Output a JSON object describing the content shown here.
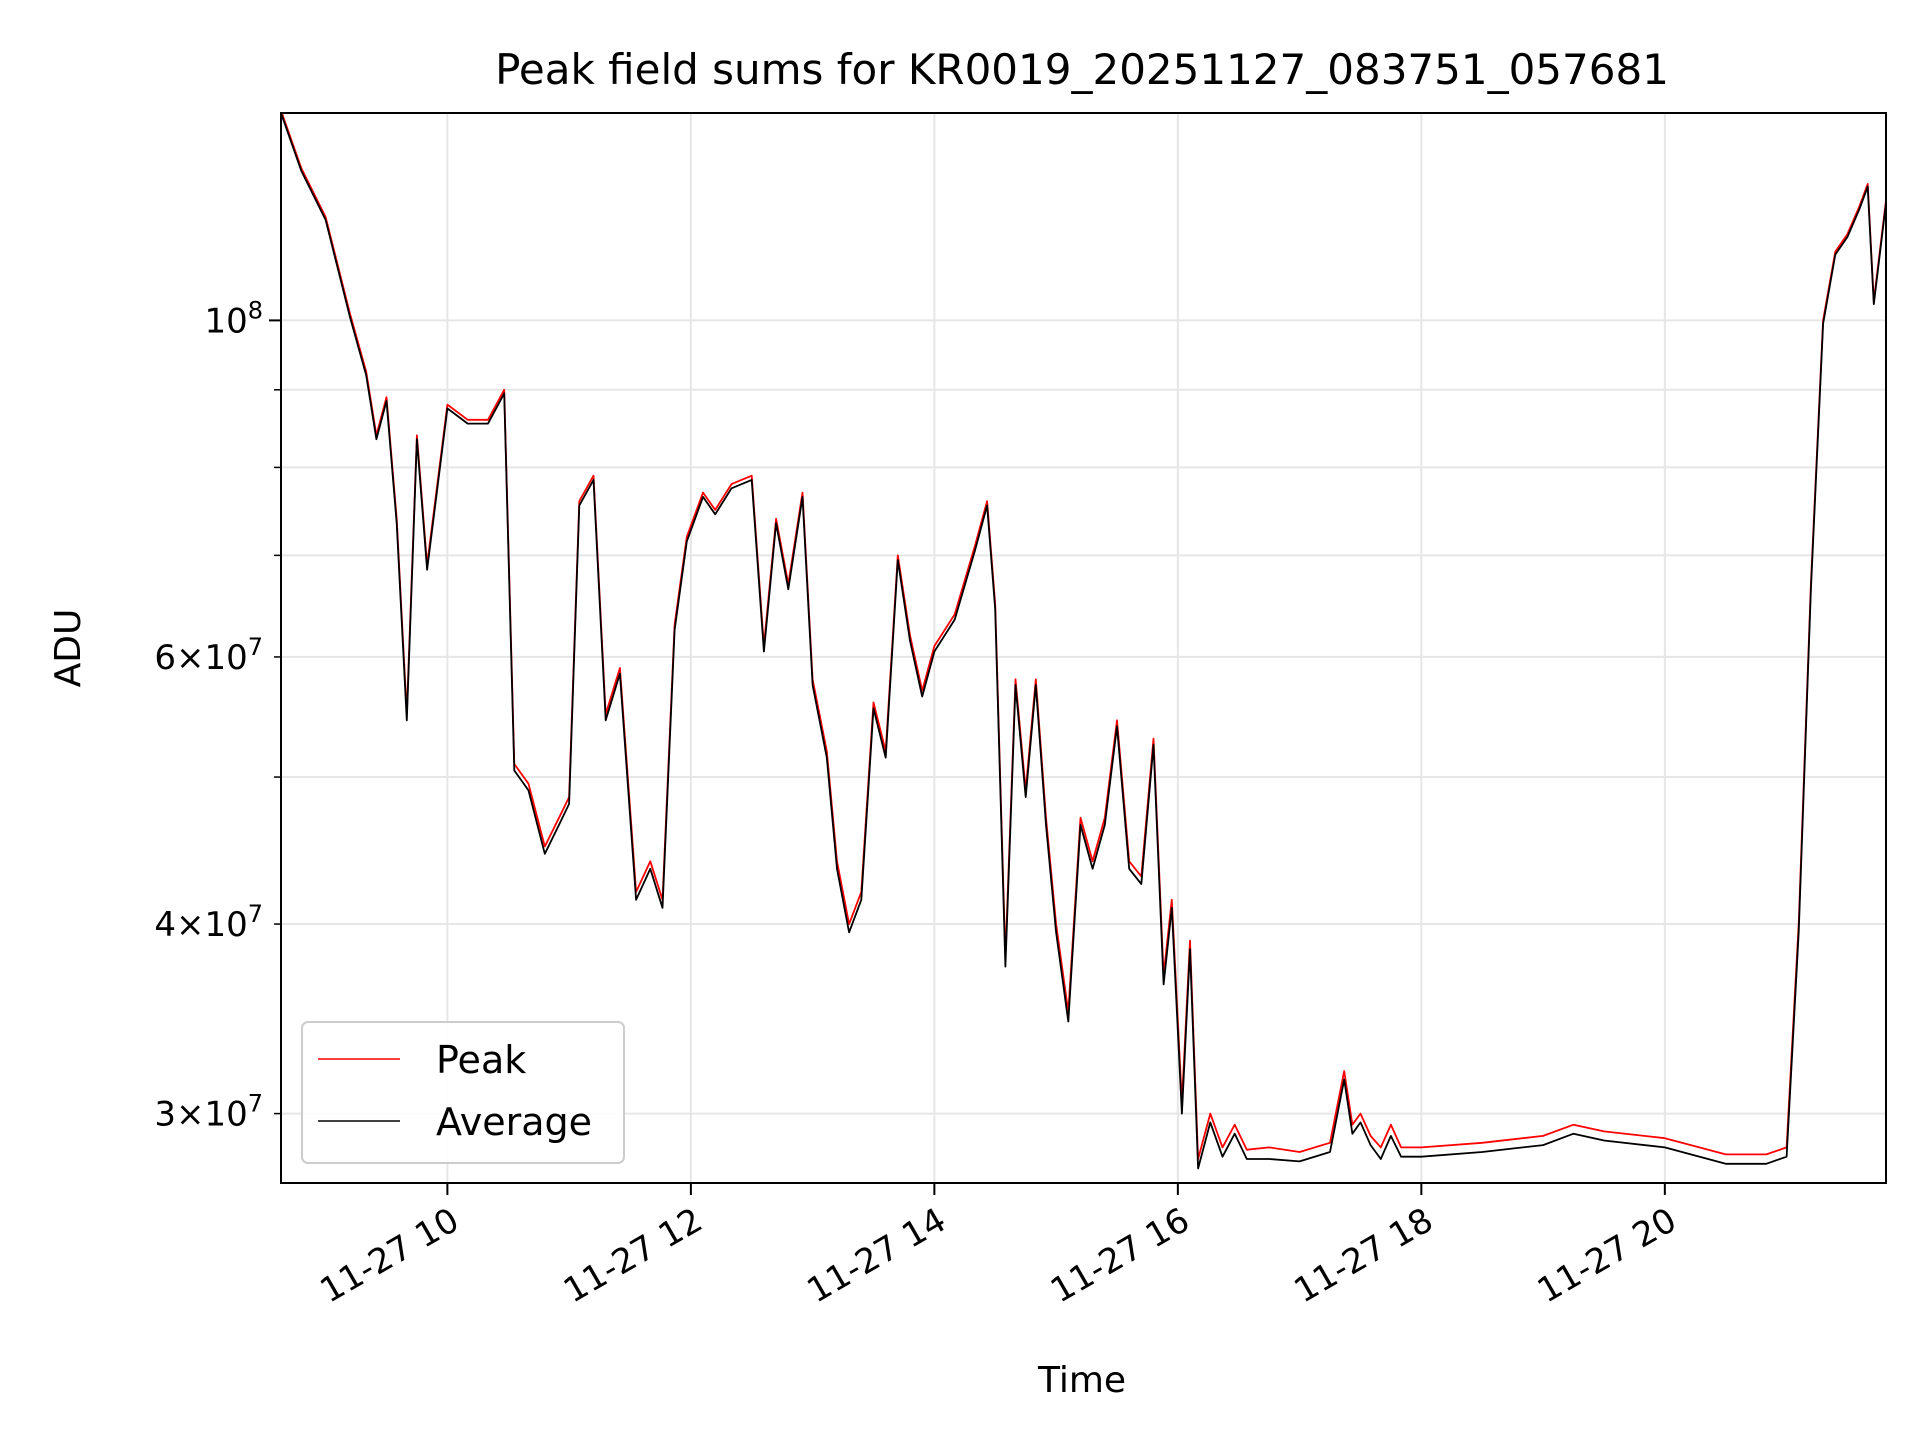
{
  "chart_data": {
    "type": "line",
    "title": "Peak field sums for KR0019_20251127_083751_057681",
    "xlabel": "Time",
    "ylabel": "ADU",
    "y_scale": "log",
    "grid": true,
    "legend_placement": "lower-left",
    "xlim": [
      "2025-11-27 08:38",
      "2025-11-27 21:49"
    ],
    "ylim": [
      27000000,
      137000000
    ],
    "x_ticks": [
      "11-27 10",
      "11-27 12",
      "11-27 14",
      "11-27 16",
      "11-27 18",
      "11-27 20"
    ],
    "x_tick_values": [
      "2025-11-27 10:00",
      "2025-11-27 12:00",
      "2025-11-27 14:00",
      "2025-11-27 16:00",
      "2025-11-27 18:00",
      "2025-11-27 20:00"
    ],
    "y_ticks": [
      {
        "value": 30000000,
        "mantissa": "3",
        "exp": "7",
        "major": false
      },
      {
        "value": 40000000,
        "mantissa": "4",
        "exp": "7",
        "major": false
      },
      {
        "value": 60000000,
        "mantissa": "6",
        "exp": "7",
        "major": false
      },
      {
        "value": 100000000,
        "mantissa": "",
        "exp": "8",
        "major": true
      }
    ],
    "y_minor_unlabeled": [
      50000000,
      70000000,
      80000000,
      90000000
    ],
    "series": [
      {
        "name": "Peak",
        "color": "#ff0000",
        "x": [
          "2025-11-27 08:38",
          "2025-11-27 08:48",
          "2025-11-27 09:00",
          "2025-11-27 09:12",
          "2025-11-27 09:20",
          "2025-11-27 09:25",
          "2025-11-27 09:30",
          "2025-11-27 09:35",
          "2025-11-27 09:40",
          "2025-11-27 09:45",
          "2025-11-27 09:50",
          "2025-11-27 10:00",
          "2025-11-27 10:10",
          "2025-11-27 10:20",
          "2025-11-27 10:28",
          "2025-11-27 10:33",
          "2025-11-27 10:40",
          "2025-11-27 10:48",
          "2025-11-27 10:55",
          "2025-11-27 11:00",
          "2025-11-27 11:05",
          "2025-11-27 11:12",
          "2025-11-27 11:18",
          "2025-11-27 11:25",
          "2025-11-27 11:33",
          "2025-11-27 11:40",
          "2025-11-27 11:46",
          "2025-11-27 11:52",
          "2025-11-27 11:58",
          "2025-11-27 12:06",
          "2025-11-27 12:12",
          "2025-11-27 12:20",
          "2025-11-27 12:30",
          "2025-11-27 12:36",
          "2025-11-27 12:42",
          "2025-11-27 12:48",
          "2025-11-27 12:55",
          "2025-11-27 13:00",
          "2025-11-27 13:07",
          "2025-11-27 13:12",
          "2025-11-27 13:18",
          "2025-11-27 13:24",
          "2025-11-27 13:30",
          "2025-11-27 13:36",
          "2025-11-27 13:42",
          "2025-11-27 13:48",
          "2025-11-27 13:54",
          "2025-11-27 14:00",
          "2025-11-27 14:10",
          "2025-11-27 14:20",
          "2025-11-27 14:26",
          "2025-11-27 14:30",
          "2025-11-27 14:35",
          "2025-11-27 14:40",
          "2025-11-27 14:45",
          "2025-11-27 14:50",
          "2025-11-27 14:55",
          "2025-11-27 15:00",
          "2025-11-27 15:06",
          "2025-11-27 15:12",
          "2025-11-27 15:18",
          "2025-11-27 15:24",
          "2025-11-27 15:30",
          "2025-11-27 15:36",
          "2025-11-27 15:42",
          "2025-11-27 15:48",
          "2025-11-27 15:53",
          "2025-11-27 15:57",
          "2025-11-27 16:02",
          "2025-11-27 16:06",
          "2025-11-27 16:10",
          "2025-11-27 16:16",
          "2025-11-27 16:22",
          "2025-11-27 16:28",
          "2025-11-27 16:34",
          "2025-11-27 16:45",
          "2025-11-27 17:00",
          "2025-11-27 17:15",
          "2025-11-27 17:22",
          "2025-11-27 17:26",
          "2025-11-27 17:30",
          "2025-11-27 17:35",
          "2025-11-27 17:40",
          "2025-11-27 17:45",
          "2025-11-27 17:50",
          "2025-11-27 18:00",
          "2025-11-27 18:30",
          "2025-11-27 19:00",
          "2025-11-27 19:15",
          "2025-11-27 19:30",
          "2025-11-27 20:00",
          "2025-11-27 20:30",
          "2025-11-27 20:50",
          "2025-11-27 21:00",
          "2025-11-27 21:06",
          "2025-11-27 21:12",
          "2025-11-27 21:18",
          "2025-11-27 21:24",
          "2025-11-27 21:30",
          "2025-11-27 21:36",
          "2025-11-27 21:40",
          "2025-11-27 21:43",
          "2025-11-27 21:49"
        ],
        "y": [
          137500000,
          126000000,
          117000000,
          101000000,
          92500000,
          84000000,
          89000000,
          74000000,
          55000000,
          84000000,
          69000000,
          88000000,
          86000000,
          86000000,
          90000000,
          51000000,
          49500000,
          45000000,
          47000000,
          48500000,
          76000000,
          79000000,
          55000000,
          59000000,
          42000000,
          44000000,
          41500000,
          63000000,
          72000000,
          77000000,
          75000000,
          78000000,
          79000000,
          61000000,
          74000000,
          67000000,
          77000000,
          58000000,
          52000000,
          44000000,
          40000000,
          42000000,
          56000000,
          52000000,
          70000000,
          62000000,
          57000000,
          61000000,
          64000000,
          71000000,
          76000000,
          65000000,
          38000000,
          58000000,
          49000000,
          58000000,
          47000000,
          40000000,
          35000000,
          47000000,
          44000000,
          47000000,
          54500000,
          44000000,
          43000000,
          53000000,
          37000000,
          41500000,
          30500000,
          39000000,
          28000000,
          30000000,
          28500000,
          29500000,
          28400000,
          28500000,
          28300000,
          28700000,
          32000000,
          29500000,
          30000000,
          29000000,
          28500000,
          29500000,
          28500000,
          28500000,
          28700000,
          29000000,
          29500000,
          29200000,
          28900000,
          28200000,
          28200000,
          28500000,
          40000000,
          67000000,
          100000000,
          111000000,
          114000000,
          119000000,
          123000000,
          103000000,
          120000000
        ]
      },
      {
        "name": "Average",
        "color": "#000000",
        "x": [
          "2025-11-27 08:38",
          "2025-11-27 08:48",
          "2025-11-27 09:00",
          "2025-11-27 09:12",
          "2025-11-27 09:20",
          "2025-11-27 09:25",
          "2025-11-27 09:30",
          "2025-11-27 09:35",
          "2025-11-27 09:40",
          "2025-11-27 09:45",
          "2025-11-27 09:50",
          "2025-11-27 10:00",
          "2025-11-27 10:10",
          "2025-11-27 10:20",
          "2025-11-27 10:28",
          "2025-11-27 10:33",
          "2025-11-27 10:40",
          "2025-11-27 10:48",
          "2025-11-27 10:55",
          "2025-11-27 11:00",
          "2025-11-27 11:05",
          "2025-11-27 11:12",
          "2025-11-27 11:18",
          "2025-11-27 11:25",
          "2025-11-27 11:33",
          "2025-11-27 11:40",
          "2025-11-27 11:46",
          "2025-11-27 11:52",
          "2025-11-27 11:58",
          "2025-11-27 12:06",
          "2025-11-27 12:12",
          "2025-11-27 12:20",
          "2025-11-27 12:30",
          "2025-11-27 12:36",
          "2025-11-27 12:42",
          "2025-11-27 12:48",
          "2025-11-27 12:55",
          "2025-11-27 13:00",
          "2025-11-27 13:07",
          "2025-11-27 13:12",
          "2025-11-27 13:18",
          "2025-11-27 13:24",
          "2025-11-27 13:30",
          "2025-11-27 13:36",
          "2025-11-27 13:42",
          "2025-11-27 13:48",
          "2025-11-27 13:54",
          "2025-11-27 14:00",
          "2025-11-27 14:10",
          "2025-11-27 14:20",
          "2025-11-27 14:26",
          "2025-11-27 14:30",
          "2025-11-27 14:35",
          "2025-11-27 14:40",
          "2025-11-27 14:45",
          "2025-11-27 14:50",
          "2025-11-27 14:55",
          "2025-11-27 15:00",
          "2025-11-27 15:06",
          "2025-11-27 15:12",
          "2025-11-27 15:18",
          "2025-11-27 15:24",
          "2025-11-27 15:30",
          "2025-11-27 15:36",
          "2025-11-27 15:42",
          "2025-11-27 15:48",
          "2025-11-27 15:53",
          "2025-11-27 15:57",
          "2025-11-27 16:02",
          "2025-11-27 16:06",
          "2025-11-27 16:10",
          "2025-11-27 16:16",
          "2025-11-27 16:22",
          "2025-11-27 16:28",
          "2025-11-27 16:34",
          "2025-11-27 16:45",
          "2025-11-27 17:00",
          "2025-11-27 17:15",
          "2025-11-27 17:22",
          "2025-11-27 17:26",
          "2025-11-27 17:30",
          "2025-11-27 17:35",
          "2025-11-27 17:40",
          "2025-11-27 17:45",
          "2025-11-27 17:50",
          "2025-11-27 18:00",
          "2025-11-27 18:30",
          "2025-11-27 19:00",
          "2025-11-27 19:15",
          "2025-11-27 19:30",
          "2025-11-27 20:00",
          "2025-11-27 20:30",
          "2025-11-27 20:50",
          "2025-11-27 21:00",
          "2025-11-27 21:06",
          "2025-11-27 21:12",
          "2025-11-27 21:18",
          "2025-11-27 21:24",
          "2025-11-27 21:30",
          "2025-11-27 21:36",
          "2025-11-27 21:40",
          "2025-11-27 21:43",
          "2025-11-27 21:49"
        ],
        "y": [
          137000000,
          125500000,
          116500000,
          100500000,
          92000000,
          83500000,
          88500000,
          73500000,
          54500000,
          83500000,
          68500000,
          87500000,
          85500000,
          85500000,
          89500000,
          50500000,
          49000000,
          44500000,
          46500000,
          48000000,
          75500000,
          78500000,
          54500000,
          58500000,
          41500000,
          43500000,
          41000000,
          62500000,
          71500000,
          76500000,
          74500000,
          77500000,
          78500000,
          60500000,
          73500000,
          66500000,
          76500000,
          57500000,
          51500000,
          43500000,
          39500000,
          41500000,
          55500000,
          51500000,
          69500000,
          61500000,
          56500000,
          60500000,
          63500000,
          70500000,
          75500000,
          64500000,
          37500000,
          57500000,
          48500000,
          57500000,
          46500000,
          39500000,
          34500000,
          46500000,
          43500000,
          46500000,
          54000000,
          43500000,
          42500000,
          52500000,
          36500000,
          41000000,
          30000000,
          38500000,
          27600000,
          29600000,
          28100000,
          29100000,
          28000000,
          28000000,
          27900000,
          28300000,
          31600000,
          29100000,
          29600000,
          28600000,
          28000000,
          29000000,
          28100000,
          28100000,
          28300000,
          28600000,
          29100000,
          28800000,
          28500000,
          27800000,
          27800000,
          28100000,
          39500000,
          66500000,
          99500000,
          110500000,
          113500000,
          118500000,
          122500000,
          102500000,
          119500000
        ]
      }
    ]
  }
}
